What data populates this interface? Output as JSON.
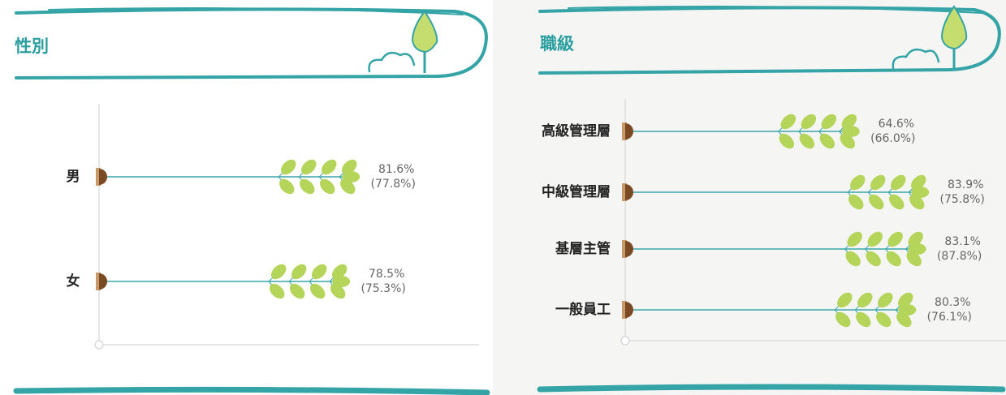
{
  "chart_data": [
    {
      "type": "bar",
      "orientation": "horizontal",
      "title": "性別",
      "categories": [
        "男",
        "女"
      ],
      "series": [
        {
          "color": "#3aa6a8",
          "values": [
            81.6,
            78.5
          ],
          "value_labels": [
            "81.6%",
            "78.5%"
          ]
        },
        {
          "values": [
            77.8,
            75.3
          ],
          "value_labels": [
            "(77.8%)",
            "(75.3%)"
          ]
        }
      ],
      "xlim": [
        0,
        120
      ]
    },
    {
      "type": "bar",
      "orientation": "horizontal",
      "title": "職級",
      "categories": [
        "高級管理層",
        "中級管理層",
        "基層主管",
        "一般員工"
      ],
      "series": [
        {
          "color": "#3aa6a8",
          "values": [
            64.6,
            83.9,
            83.1,
            80.3
          ],
          "value_labels": [
            "64.6%",
            "83.9%",
            "83.1%",
            "80.3%"
          ]
        },
        {
          "values": [
            66.0,
            75.8,
            87.8,
            76.1
          ],
          "value_labels": [
            "(66.0%)",
            "(75.8%)",
            "(87.8%)",
            "(76.1%)"
          ]
        }
      ],
      "xlim": [
        0,
        106
      ]
    }
  ]
}
